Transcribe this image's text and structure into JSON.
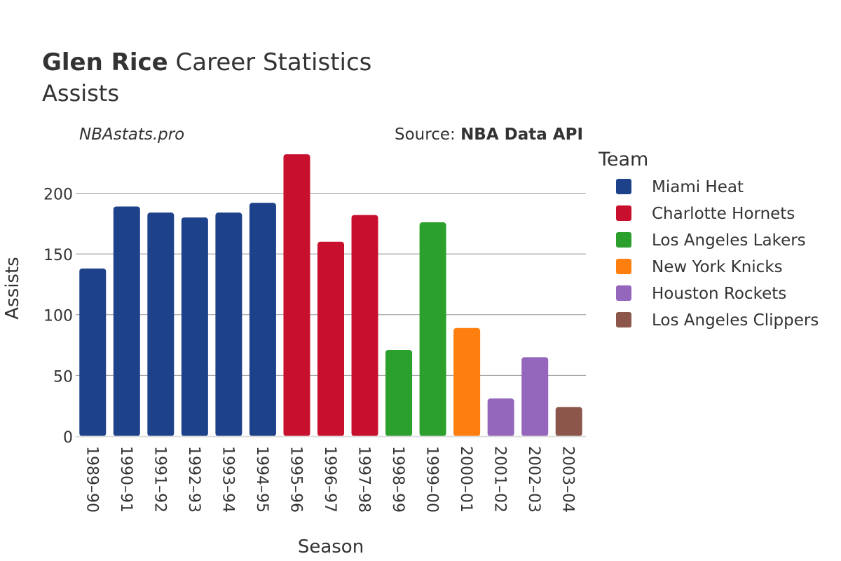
{
  "title": {
    "name": "Glen Rice",
    "rest": " Career Statistics",
    "subtitle": "Assists"
  },
  "watermark": "NBAstats.pro",
  "source": {
    "prefix": "Source: ",
    "name": "NBA Data API"
  },
  "legend": {
    "title": "Team",
    "items": [
      {
        "name": "Miami Heat",
        "color": "#1d428a"
      },
      {
        "name": "Charlotte Hornets",
        "color": "#c8102e"
      },
      {
        "name": "Los Angeles Lakers",
        "color": "#2ca02c"
      },
      {
        "name": "New York Knicks",
        "color": "#ff7f0e"
      },
      {
        "name": "Houston Rockets",
        "color": "#9467bd"
      },
      {
        "name": "Los Angeles Clippers",
        "color": "#8c564b"
      }
    ]
  },
  "chart_data": {
    "type": "bar",
    "xlabel": "Season",
    "ylabel": "Assists",
    "ylim": [
      0,
      232
    ],
    "yticks": [
      0,
      50,
      100,
      150,
      200
    ],
    "grid": true,
    "legend_position": "right",
    "categories": [
      "1989–90",
      "1990–91",
      "1991–92",
      "1992–93",
      "1993–94",
      "1994–95",
      "1995–96",
      "1996–97",
      "1997–98",
      "1998–99",
      "1999–00",
      "2000–01",
      "2001–02",
      "2002–03",
      "2003–04"
    ],
    "values": [
      138,
      189,
      184,
      180,
      184,
      192,
      232,
      160,
      182,
      71,
      176,
      89,
      31,
      65,
      24
    ],
    "teams": [
      "Miami Heat",
      "Miami Heat",
      "Miami Heat",
      "Miami Heat",
      "Miami Heat",
      "Miami Heat",
      "Charlotte Hornets",
      "Charlotte Hornets",
      "Charlotte Hornets",
      "Los Angeles Lakers",
      "Los Angeles Lakers",
      "New York Knicks",
      "Houston Rockets",
      "Houston Rockets",
      "Los Angeles Clippers"
    ]
  }
}
